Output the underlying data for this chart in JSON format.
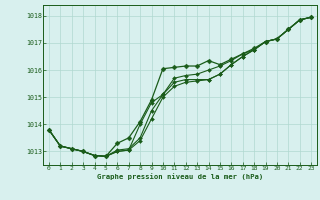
{
  "title": "Graphe pression niveau de la mer (hPa)",
  "bg_color": "#d8f0ee",
  "grid_color": "#b0d8d0",
  "line_color": "#1a5c1a",
  "marker_color": "#1a5c1a",
  "xlim": [
    -0.5,
    23.5
  ],
  "ylim": [
    1012.5,
    1018.4
  ],
  "yticks": [
    1013,
    1014,
    1015,
    1016,
    1017,
    1018
  ],
  "xticks": [
    0,
    1,
    2,
    3,
    4,
    5,
    6,
    7,
    8,
    9,
    10,
    11,
    12,
    13,
    14,
    15,
    16,
    17,
    18,
    19,
    20,
    21,
    22,
    23
  ],
  "series": [
    {
      "x": [
        0,
        1,
        2,
        3,
        4,
        5,
        6,
        7,
        8,
        9,
        10,
        11,
        12,
        13,
        14,
        15,
        16,
        17,
        18,
        19,
        20,
        21,
        22,
        23
      ],
      "y": [
        1013.8,
        1013.2,
        1013.1,
        1013.0,
        1012.85,
        1012.82,
        1013.3,
        1013.5,
        1014.1,
        1014.9,
        1016.05,
        1016.1,
        1016.15,
        1016.15,
        1016.35,
        1016.2,
        1016.4,
        1016.6,
        1016.8,
        1017.05,
        1017.15,
        1017.5,
        1017.85,
        1017.95
      ],
      "lw": 0.9,
      "ms": 2.5
    },
    {
      "x": [
        0,
        1,
        2,
        3,
        4,
        5,
        6,
        7,
        8,
        9,
        10,
        11,
        12,
        13,
        14,
        15,
        16,
        17,
        18,
        19,
        20,
        21,
        22,
        23
      ],
      "y": [
        1013.8,
        1013.2,
        1013.1,
        1013.0,
        1012.85,
        1012.82,
        1013.05,
        1013.1,
        1013.5,
        1014.5,
        1015.1,
        1015.55,
        1015.65,
        1015.65,
        1015.65,
        1015.85,
        1016.2,
        1016.5,
        1016.75,
        1017.05,
        1017.15,
        1017.5,
        1017.85,
        1017.95
      ],
      "lw": 0.8,
      "ms": 2.0
    },
    {
      "x": [
        0,
        1,
        2,
        3,
        4,
        5,
        6,
        7,
        8,
        9,
        10,
        11,
        12,
        13,
        14,
        15,
        16,
        17,
        18,
        19,
        20,
        21,
        22,
        23
      ],
      "y": [
        1013.8,
        1013.2,
        1013.1,
        1013.0,
        1012.85,
        1012.82,
        1013.0,
        1013.05,
        1013.4,
        1014.2,
        1015.0,
        1015.4,
        1015.55,
        1015.6,
        1015.65,
        1015.85,
        1016.2,
        1016.5,
        1016.75,
        1017.05,
        1017.15,
        1017.5,
        1017.85,
        1017.95
      ],
      "lw": 0.8,
      "ms": 2.0
    },
    {
      "x": [
        0,
        1,
        2,
        3,
        4,
        5,
        6,
        7,
        8,
        9,
        10,
        11,
        12,
        13,
        14,
        15,
        16,
        17,
        18,
        19,
        20,
        21,
        22,
        23
      ],
      "y": [
        1013.8,
        1013.2,
        1013.1,
        1013.0,
        1012.85,
        1012.82,
        1013.0,
        1013.05,
        1014.0,
        1014.8,
        1015.1,
        1015.7,
        1015.8,
        1015.85,
        1016.0,
        1016.15,
        1016.35,
        1016.6,
        1016.75,
        1017.05,
        1017.15,
        1017.5,
        1017.85,
        1017.95
      ],
      "lw": 0.8,
      "ms": 2.0
    }
  ]
}
